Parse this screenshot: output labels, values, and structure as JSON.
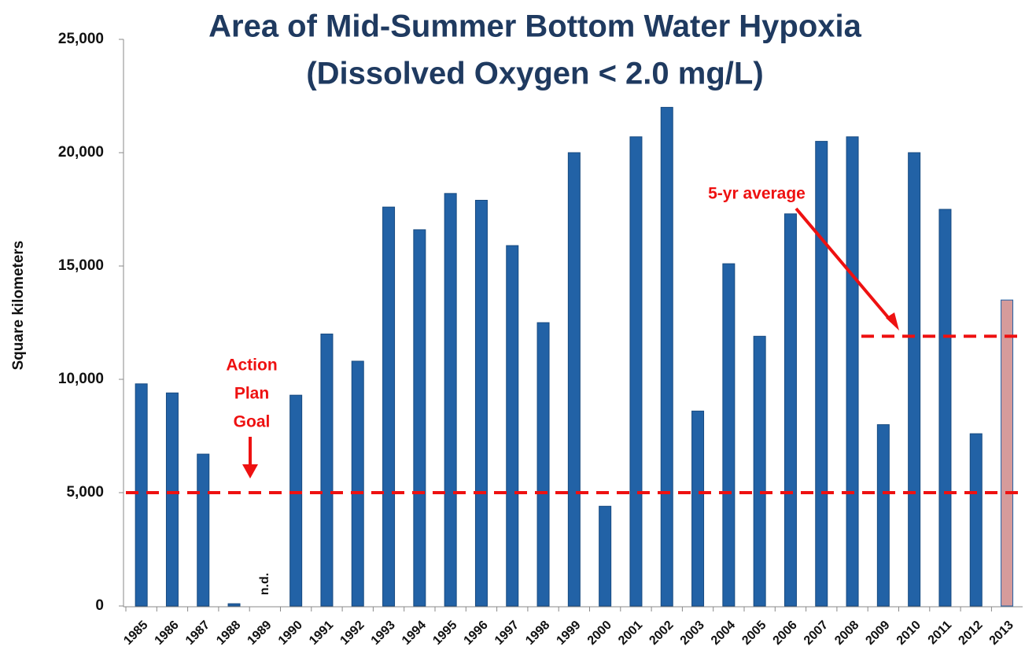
{
  "chart_data": {
    "type": "bar",
    "title": [
      "Area of Mid-Summer Bottom Water Hypoxia",
      "(Dissolved Oxygen < 2.0 mg/L)"
    ],
    "y_label": "Square kilometers",
    "categories": [
      "1985",
      "1986",
      "1987",
      "1988",
      "1989",
      "1990",
      "1991",
      "1992",
      "1993",
      "1994",
      "1995",
      "1996",
      "1997",
      "1998",
      "1999",
      "2000",
      "2001",
      "2002",
      "2003",
      "2004",
      "2005",
      "2006",
      "2007",
      "2008",
      "2009",
      "2010",
      "2011",
      "2012",
      "2013"
    ],
    "values": [
      9800,
      9400,
      6700,
      100,
      null,
      9300,
      12000,
      10800,
      17600,
      16600,
      18200,
      17900,
      15900,
      12500,
      20000,
      4400,
      20700,
      22000,
      8600,
      15100,
      11900,
      17300,
      20500,
      20700,
      8000,
      20000,
      17500,
      7600,
      13500
    ],
    "value_labels": [
      null,
      null,
      null,
      null,
      "n.d.",
      null,
      null,
      null,
      null,
      null,
      null,
      null,
      null,
      null,
      null,
      null,
      null,
      null,
      null,
      null,
      null,
      null,
      null,
      null,
      null,
      null,
      null,
      null,
      null
    ],
    "colors": [
      "#2262a6",
      "#2262a6",
      "#2262a6",
      "#2262a6",
      "#2262a6",
      "#2262a6",
      "#2262a6",
      "#2262a6",
      "#2262a6",
      "#2262a6",
      "#2262a6",
      "#2262a6",
      "#2262a6",
      "#2262a6",
      "#2262a6",
      "#2262a6",
      "#2262a6",
      "#2262a6",
      "#2262a6",
      "#2262a6",
      "#2262a6",
      "#2262a6",
      "#2262a6",
      "#2262a6",
      "#2262a6",
      "#2262a6",
      "#2262a6",
      "#2262a6",
      "#d59b9b"
    ],
    "ylim": [
      0,
      25000
    ],
    "yticks": [
      0,
      {
        "value": 5000,
        "label": "5,000"
      },
      {
        "value": 10000,
        "label": "10,000"
      },
      {
        "value": 15000,
        "label": "15,000"
      },
      {
        "value": 20000,
        "label": "20,000"
      },
      {
        "value": 25000,
        "label": "25,000"
      }
    ],
    "reference_lines": [
      {
        "value": 5000,
        "label": [
          "Action",
          "Plan",
          "Goal"
        ],
        "color": "#ee1111"
      },
      {
        "value": 11900,
        "label": [
          "5-yr average"
        ],
        "color": "#ee1111"
      }
    ]
  }
}
